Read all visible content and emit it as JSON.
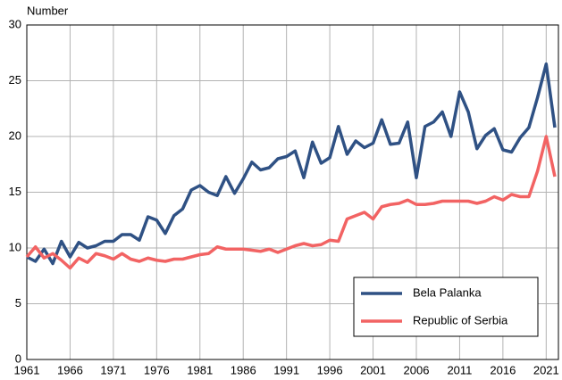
{
  "chart_data": {
    "type": "line",
    "y_label": "Number",
    "x": [
      1961,
      1962,
      1963,
      1964,
      1965,
      1966,
      1967,
      1968,
      1969,
      1970,
      1971,
      1972,
      1973,
      1974,
      1975,
      1976,
      1977,
      1978,
      1979,
      1980,
      1981,
      1982,
      1983,
      1984,
      1985,
      1986,
      1987,
      1988,
      1989,
      1990,
      1991,
      1992,
      1993,
      1994,
      1995,
      1996,
      1997,
      1998,
      1999,
      2000,
      2001,
      2002,
      2003,
      2004,
      2005,
      2006,
      2007,
      2008,
      2009,
      2010,
      2011,
      2012,
      2013,
      2014,
      2015,
      2016,
      2017,
      2018,
      2019,
      2020,
      2021,
      2022
    ],
    "series": [
      {
        "name": "Bela Palanka",
        "color": "#2f5184",
        "values": [
          9.2,
          8.8,
          9.9,
          8.6,
          10.6,
          9.2,
          10.5,
          10.0,
          10.2,
          10.6,
          10.6,
          11.2,
          11.2,
          10.7,
          12.8,
          12.5,
          11.3,
          12.9,
          13.5,
          15.2,
          15.6,
          15.0,
          14.7,
          16.4,
          14.9,
          16.2,
          17.7,
          17.0,
          17.2,
          18.0,
          18.2,
          18.7,
          16.3,
          19.5,
          17.6,
          18.1,
          20.9,
          18.4,
          19.6,
          19.0,
          19.4,
          21.5,
          19.3,
          19.4,
          21.3,
          16.3,
          20.9,
          21.3,
          22.2,
          20.0,
          24.0,
          22.2,
          18.9,
          20.1,
          20.7,
          18.8,
          18.6,
          19.9,
          20.8,
          23.5,
          26.5,
          20.8
        ]
      },
      {
        "name": "Republic of Serbia",
        "color": "#f26363",
        "values": [
          9.2,
          10.1,
          9.1,
          9.5,
          8.9,
          8.2,
          9.1,
          8.7,
          9.5,
          9.3,
          9.0,
          9.5,
          9.0,
          8.8,
          9.1,
          8.9,
          8.8,
          9.0,
          9.0,
          9.2,
          9.4,
          9.5,
          10.1,
          9.9,
          9.9,
          9.9,
          9.8,
          9.7,
          9.9,
          9.6,
          9.9,
          10.2,
          10.4,
          10.2,
          10.3,
          10.7,
          10.6,
          12.6,
          12.9,
          13.2,
          12.6,
          13.7,
          13.9,
          14.0,
          14.3,
          13.9,
          13.9,
          14.0,
          14.2,
          14.2,
          14.2,
          14.2,
          14.0,
          14.2,
          14.6,
          14.3,
          14.8,
          14.6,
          14.6,
          16.9,
          20.0,
          16.4
        ]
      }
    ],
    "xlim": [
      1961,
      2022
    ],
    "xticks": [
      1961,
      1966,
      1971,
      1976,
      1981,
      1986,
      1991,
      1996,
      2001,
      2006,
      2011,
      2016,
      2021
    ],
    "ylim": [
      0,
      30
    ],
    "yticks": [
      0,
      5,
      10,
      15,
      20,
      25,
      30
    ],
    "grid": true,
    "legend": "lower right"
  }
}
